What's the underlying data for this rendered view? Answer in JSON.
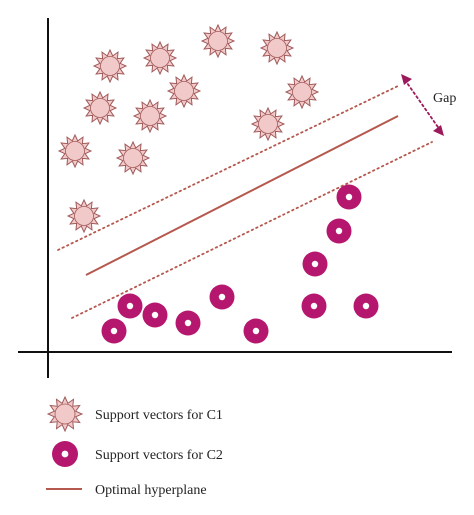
{
  "colors": {
    "c1_fill": "#f2c9c9",
    "c1_stroke": "#a05a5a",
    "c2_fill": "#b5176e",
    "c2_center": "#ffffff",
    "hyperline": "#b5584e",
    "axis": "#111111",
    "gap_arrow": "#9c1a5c"
  },
  "gap_label": "Gap",
  "legend": {
    "c1_label": "Support vectors for C1",
    "c2_label": "Support vectors for C2",
    "hyperplane_label": "Optimal hyperplane"
  },
  "c1_icon": "star-burst-icon",
  "c2_icon": "ring-dot-icon"
}
